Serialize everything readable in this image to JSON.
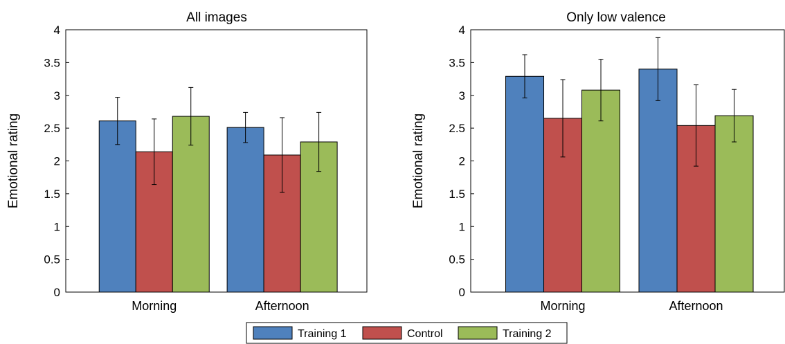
{
  "chart_data": [
    {
      "type": "bar",
      "title": "All images",
      "ylabel": "Emotional rating",
      "xlabel": "",
      "ylim": [
        0,
        4
      ],
      "yticks": [
        "0",
        "0.5",
        "1",
        "1.5",
        "2",
        "2.5",
        "3",
        "3.5",
        "4"
      ],
      "categories": [
        "Morning",
        "Afternoon"
      ],
      "series": [
        {
          "name": "Training 1",
          "values": [
            2.61,
            2.51
          ],
          "errors": [
            0.36,
            0.23
          ]
        },
        {
          "name": "Control",
          "values": [
            2.14,
            2.09
          ],
          "errors": [
            0.5,
            0.57
          ]
        },
        {
          "name": "Training 2",
          "values": [
            2.68,
            2.29
          ],
          "errors": [
            0.44,
            0.45
          ]
        }
      ],
      "grid": false
    },
    {
      "type": "bar",
      "title": "Only low valence",
      "ylabel": "Emotional rating",
      "xlabel": "",
      "ylim": [
        0,
        4
      ],
      "yticks": [
        "0",
        "0.5",
        "1",
        "1.5",
        "2",
        "2.5",
        "3",
        "3.5",
        "4"
      ],
      "categories": [
        "Morning",
        "Afternoon"
      ],
      "series": [
        {
          "name": "Training 1",
          "values": [
            3.29,
            3.4
          ],
          "errors": [
            0.33,
            0.48
          ]
        },
        {
          "name": "Control",
          "values": [
            2.65,
            2.54
          ],
          "errors": [
            0.59,
            0.62
          ]
        },
        {
          "name": "Training 2",
          "values": [
            3.08,
            2.69
          ],
          "errors": [
            0.47,
            0.4
          ]
        }
      ],
      "grid": false
    }
  ],
  "legend": {
    "placement": "bottom-center",
    "items": [
      "Training 1",
      "Control",
      "Training 2"
    ]
  },
  "colors": {
    "Training 1": "#4f81bd",
    "Control": "#c0504d",
    "Training 2": "#9bbb59"
  }
}
